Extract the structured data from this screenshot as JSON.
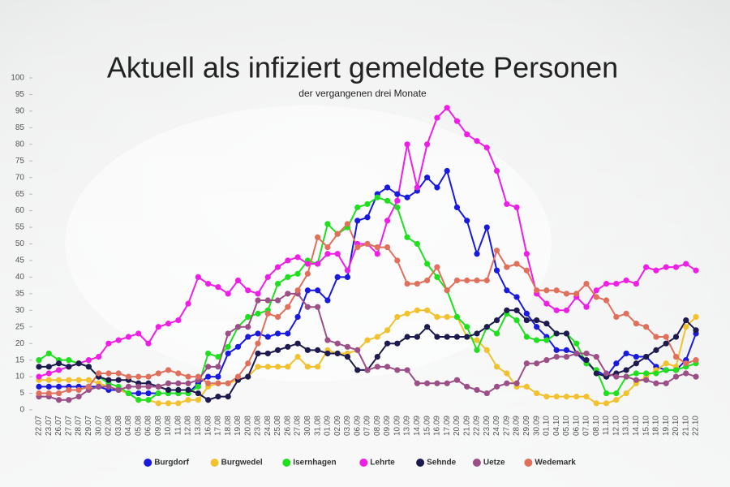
{
  "chart_data": {
    "type": "line",
    "title": "Aktuell als infiziert gemeldete Personen",
    "subtitle": "der vergangenen drei Monate",
    "categories": [
      "22.07",
      "23.07",
      "26.07",
      "27.07",
      "28.07",
      "29.07",
      "30.07",
      "02.08",
      "03.08",
      "04.08",
      "05.08",
      "06.08",
      "09.08",
      "10.08",
      "11.08",
      "12.08",
      "13.08",
      "16.08",
      "17.08",
      "18.08",
      "19.08",
      "20.08",
      "23.08",
      "24.08",
      "25.08",
      "26.08",
      "27.08",
      "30.08",
      "31.08",
      "01.09",
      "02.09",
      "03.09",
      "06.09",
      "07.09",
      "08.09",
      "09.09",
      "10.09",
      "13.09",
      "14.09",
      "15.09",
      "16.09",
      "17.09",
      "20.09",
      "21.09",
      "22.09",
      "23.09",
      "24.09",
      "27.09",
      "28.09",
      "29.09",
      "30.09",
      "01.10",
      "04.10",
      "05.10",
      "06.10",
      "07.10",
      "08.10",
      "11.10",
      "12.10",
      "13.10",
      "14.10",
      "15.10",
      "18.10",
      "19.10",
      "20.10",
      "21.10",
      "22.10"
    ],
    "series": [
      {
        "name": "Burgdorf",
        "color": "#1a1adf",
        "values": [
          7,
          7,
          7,
          7,
          7,
          7,
          7,
          6,
          6,
          5,
          5,
          5,
          5,
          5,
          5,
          5,
          8,
          10,
          10,
          17,
          19,
          22,
          23,
          22,
          23,
          23,
          28,
          36,
          36,
          33,
          40,
          40,
          57,
          58,
          65,
          67,
          65,
          64,
          66,
          70,
          67,
          72,
          61,
          57,
          47,
          55,
          42,
          36,
          34,
          29,
          25,
          22,
          18,
          18,
          17,
          14,
          12,
          10,
          14,
          17,
          16,
          16,
          13,
          12,
          12,
          15,
          23
        ]
      },
      {
        "name": "Burgwedel",
        "color": "#f2c12e",
        "values": [
          9,
          9,
          9,
          9,
          9,
          9,
          8,
          7,
          6,
          5,
          3,
          3,
          2,
          2,
          2,
          3,
          3,
          7,
          8,
          8,
          9,
          10,
          13,
          13,
          13,
          13,
          16,
          13,
          13,
          18,
          17,
          17,
          18,
          21,
          22,
          24,
          28,
          29,
          30,
          30,
          28,
          28,
          28,
          22,
          21,
          18,
          13,
          11,
          7,
          7,
          5,
          4,
          4,
          4,
          4,
          4,
          2,
          2,
          3,
          5,
          8,
          10,
          12,
          14,
          13,
          25,
          28
        ]
      },
      {
        "name": "Isernhagen",
        "color": "#1fe01f",
        "values": [
          15,
          17,
          15,
          15,
          14,
          13,
          10,
          8,
          7,
          5,
          3,
          3,
          5,
          5,
          5,
          5,
          7,
          17,
          16,
          19,
          25,
          28,
          29,
          30,
          38,
          40,
          41,
          45,
          44,
          56,
          53,
          55,
          61,
          62,
          64,
          63,
          61,
          52,
          50,
          44,
          40,
          36,
          28,
          25,
          18,
          25,
          23,
          29,
          27,
          22,
          21,
          21,
          23,
          23,
          20,
          14,
          12,
          5,
          5,
          10,
          11,
          11,
          11,
          12,
          12,
          13,
          14
        ]
      },
      {
        "name": "Lehrte",
        "color": "#ee1ee6",
        "values": [
          10,
          11,
          12,
          13,
          14,
          15,
          16,
          20,
          21,
          22,
          23,
          20,
          25,
          26,
          27,
          32,
          40,
          38,
          37,
          35,
          39,
          36,
          35,
          40,
          43,
          45,
          46,
          44,
          44,
          47,
          47,
          42,
          50,
          50,
          47,
          57,
          63,
          80,
          67,
          80,
          88,
          91,
          87,
          83,
          81,
          79,
          72,
          62,
          61,
          47,
          35,
          32,
          30,
          30,
          34,
          31,
          36,
          38,
          38,
          39,
          38,
          43,
          42,
          43,
          43,
          44,
          42
        ]
      },
      {
        "name": "Sehnde",
        "color": "#1c1a4e",
        "values": [
          13,
          13,
          14,
          13,
          14,
          13,
          10,
          9,
          9,
          9,
          8,
          8,
          7,
          6,
          6,
          6,
          5,
          3,
          4,
          4,
          9,
          10,
          17,
          17,
          18,
          19,
          20,
          18,
          18,
          17,
          17,
          16,
          12,
          12,
          16,
          20,
          20,
          22,
          22,
          25,
          22,
          22,
          22,
          22,
          23,
          25,
          27,
          30,
          30,
          27,
          27,
          26,
          23,
          23,
          17,
          15,
          11,
          10,
          11,
          12,
          14,
          16,
          18,
          20,
          22,
          27,
          24
        ]
      },
      {
        "name": "Uetze",
        "color": "#9c4f86",
        "values": [
          4,
          4,
          3,
          3,
          4,
          6,
          7,
          7,
          6,
          7,
          7,
          7,
          7,
          8,
          8,
          8,
          9,
          13,
          13,
          23,
          25,
          25,
          33,
          33,
          33,
          35,
          35,
          31,
          31,
          21,
          20,
          19,
          18,
          12,
          13,
          13,
          12,
          12,
          8,
          8,
          8,
          8,
          9,
          7,
          6,
          5,
          7,
          8,
          8,
          14,
          14,
          15,
          16,
          16,
          17,
          17,
          16,
          11,
          10,
          10,
          9,
          9,
          8,
          8,
          10,
          11,
          10
        ]
      },
      {
        "name": "Wedemark",
        "color": "#e0705c",
        "values": [
          5,
          5,
          5,
          6,
          6,
          7,
          11,
          11,
          11,
          10,
          10,
          10,
          11,
          12,
          11,
          10,
          10,
          8,
          8,
          8,
          10,
          14,
          20,
          29,
          28,
          31,
          36,
          41,
          52,
          49,
          53,
          56,
          49,
          50,
          49,
          49,
          45,
          38,
          38,
          39,
          43,
          36,
          39,
          39,
          39,
          39,
          48,
          43,
          44,
          42,
          36,
          36,
          36,
          35,
          35,
          38,
          34,
          33,
          28,
          29,
          26,
          25,
          22,
          22,
          16,
          14,
          15
        ]
      }
    ],
    "ylim": [
      0,
      100
    ],
    "yticks": [
      0,
      5,
      10,
      15,
      20,
      25,
      30,
      35,
      40,
      45,
      50,
      55,
      60,
      65,
      70,
      75,
      80,
      85,
      90,
      95,
      100
    ],
    "legend": "bottom"
  }
}
